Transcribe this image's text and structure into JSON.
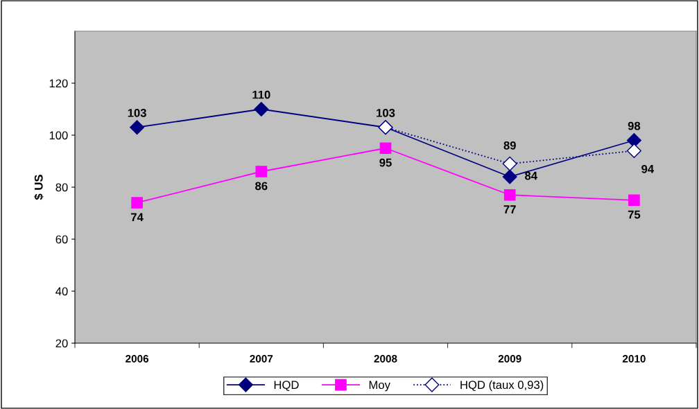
{
  "chart_data": {
    "type": "line",
    "ylabel": "$ US",
    "categories": [
      "2006",
      "2007",
      "2008",
      "2009",
      "2010"
    ],
    "ylim": [
      20,
      140
    ],
    "yticks": [
      20,
      40,
      60,
      80,
      100,
      120
    ],
    "grid": false,
    "legend": "bottom",
    "series": [
      {
        "name": "HQD",
        "color": "#000080",
        "values": [
          103,
          110,
          103,
          84,
          98
        ],
        "marker": "diamond",
        "line_style": "solid",
        "value_labels": [
          "103",
          "110",
          "103",
          "84",
          "98"
        ]
      },
      {
        "name": "Moy",
        "color": "#ff00ff",
        "values": [
          74,
          86,
          95,
          77,
          75
        ],
        "marker": "square",
        "line_style": "solid",
        "value_labels": [
          "74",
          "86",
          "95",
          "77",
          "75"
        ]
      },
      {
        "name": "HQD (taux 0,93)",
        "color": "#000080",
        "values": [
          null,
          null,
          103,
          89,
          94
        ],
        "marker": "diamond",
        "line_style": "dotted",
        "value_labels": [
          null,
          null,
          null,
          "89",
          "94"
        ]
      }
    ]
  }
}
